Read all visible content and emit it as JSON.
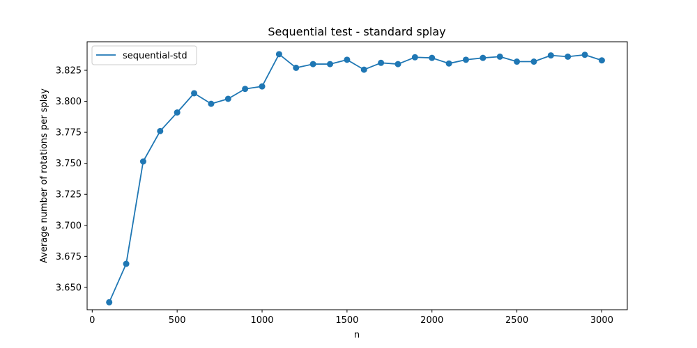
{
  "chart_data": {
    "type": "line",
    "title": "Sequential test - standard splay",
    "xlabel": "n",
    "ylabel": "Average number of rotations per splay",
    "xlim": [
      -30,
      3150
    ],
    "ylim": [
      3.632,
      3.848
    ],
    "xticks": [
      0,
      500,
      1000,
      1500,
      2000,
      2500,
      3000
    ],
    "yticks": [
      3.65,
      3.675,
      3.7,
      3.725,
      3.75,
      3.775,
      3.8,
      3.825
    ],
    "ytick_labels": [
      "3.650",
      "3.675",
      "3.700",
      "3.725",
      "3.750",
      "3.775",
      "3.800",
      "3.825"
    ],
    "grid": false,
    "legend_position": "top-left",
    "series_color": "#1f77b4",
    "markers": "circle",
    "series": [
      {
        "name": "sequential-std",
        "x": [
          100,
          200,
          300,
          400,
          500,
          600,
          700,
          800,
          900,
          1000,
          1100,
          1200,
          1300,
          1400,
          1500,
          1600,
          1700,
          1800,
          1900,
          2000,
          2100,
          2200,
          2300,
          2400,
          2500,
          2600,
          2700,
          2800,
          2900,
          3000
        ],
        "y": [
          3.638,
          3.669,
          3.7515,
          3.776,
          3.791,
          3.8065,
          3.798,
          3.802,
          3.81,
          3.812,
          3.838,
          3.827,
          3.83,
          3.83,
          3.8335,
          3.8255,
          3.831,
          3.83,
          3.8355,
          3.835,
          3.8305,
          3.8335,
          3.835,
          3.836,
          3.832,
          3.832,
          3.837,
          3.836,
          3.8375,
          3.833
        ]
      }
    ]
  }
}
